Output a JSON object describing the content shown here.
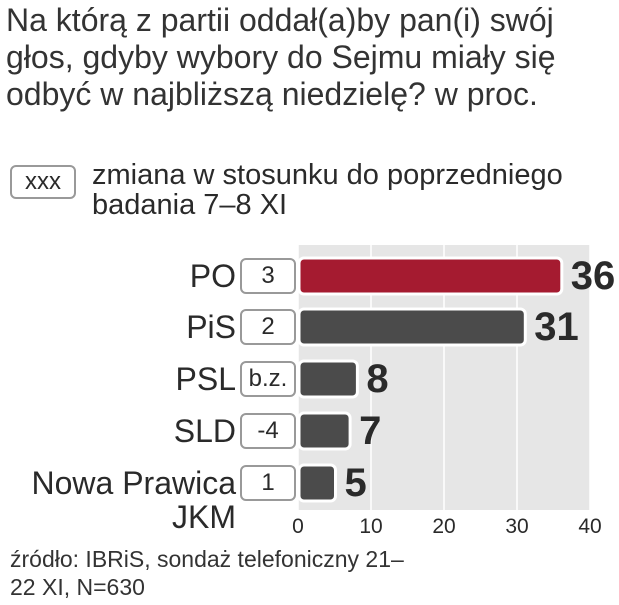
{
  "chart_data": {
    "type": "bar",
    "orientation": "horizontal",
    "title": "Na którą z partii oddał(a)by pan(i) swój głos, gdyby wybory do Sejmu miały się odbyć w najbliższą niedzielę? w proc.",
    "legend_marker": "xxx",
    "legend_text": "zmiana w stosunku do poprzedniego badania 7–8 XI",
    "categories": [
      "PO",
      "PiS",
      "PSL",
      "SLD",
      "Nowa Prawica JKM"
    ],
    "values": [
      36,
      31,
      8,
      7,
      5
    ],
    "changes": [
      "3",
      "2",
      "b.z.",
      "-4",
      "1"
    ],
    "colors": [
      "#a51b30",
      "#4b4b4b",
      "#4b4b4b",
      "#4b4b4b",
      "#4b4b4b"
    ],
    "xlim": [
      0,
      40
    ],
    "xticks": [
      0,
      10,
      20,
      30,
      40
    ],
    "grid": true,
    "source": "źródło: IBRiS, sondaż telefoniczny 21–22 XI, N=630"
  }
}
